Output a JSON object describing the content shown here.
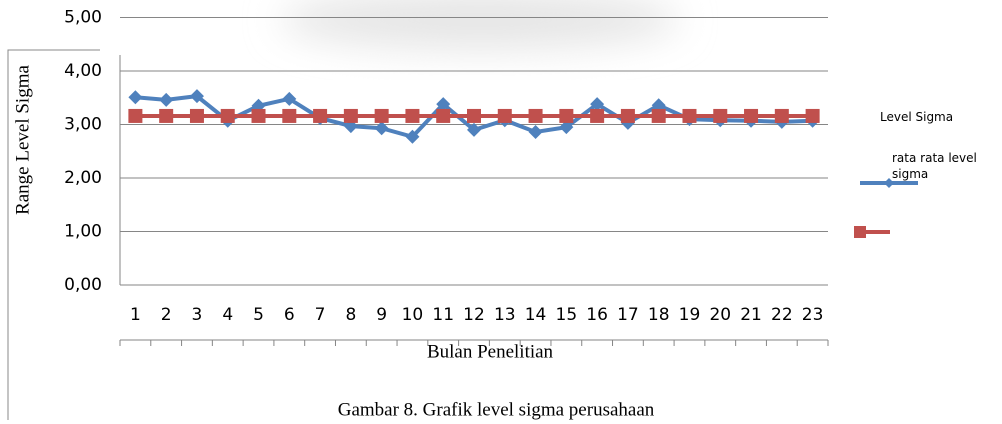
{
  "chart_data": {
    "type": "line",
    "y_label": "Range Level Sigma",
    "x_label": "Bulan Penelitian",
    "caption": "Gambar 8. Grafik level sigma perusahaan",
    "categories": [
      "1",
      "2",
      "3",
      "4",
      "5",
      "6",
      "7",
      "8",
      "9",
      "10",
      "11",
      "12",
      "13",
      "14",
      "15",
      "16",
      "17",
      "18",
      "19",
      "20",
      "21",
      "22",
      "23"
    ],
    "series": [
      {
        "name": "Level Sigma",
        "color": "#4f81bd",
        "marker": "diamond",
        "values": [
          3.51,
          3.46,
          3.53,
          3.07,
          3.35,
          3.48,
          3.12,
          2.97,
          2.93,
          2.77,
          3.38,
          2.9,
          3.08,
          2.86,
          2.95,
          3.38,
          3.03,
          3.36,
          3.1,
          3.08,
          3.07,
          3.05,
          3.07
        ]
      },
      {
        "name": "rata rata level sigma",
        "color": "#c0504d",
        "marker": "square",
        "values": [
          3.16,
          3.16,
          3.16,
          3.16,
          3.16,
          3.16,
          3.16,
          3.16,
          3.16,
          3.16,
          3.16,
          3.16,
          3.16,
          3.16,
          3.16,
          3.16,
          3.16,
          3.16,
          3.16,
          3.16,
          3.16,
          3.16,
          3.16
        ]
      }
    ],
    "ylim": [
      0,
      5
    ],
    "yticks": [
      {
        "value": 0,
        "label": "0,00"
      },
      {
        "value": 1,
        "label": "1,00"
      },
      {
        "value": 2,
        "label": "2,00"
      },
      {
        "value": 3,
        "label": "3,00"
      },
      {
        "value": 4,
        "label": "4,00"
      },
      {
        "value": 5,
        "label": "5,00"
      }
    ],
    "grid": true
  }
}
